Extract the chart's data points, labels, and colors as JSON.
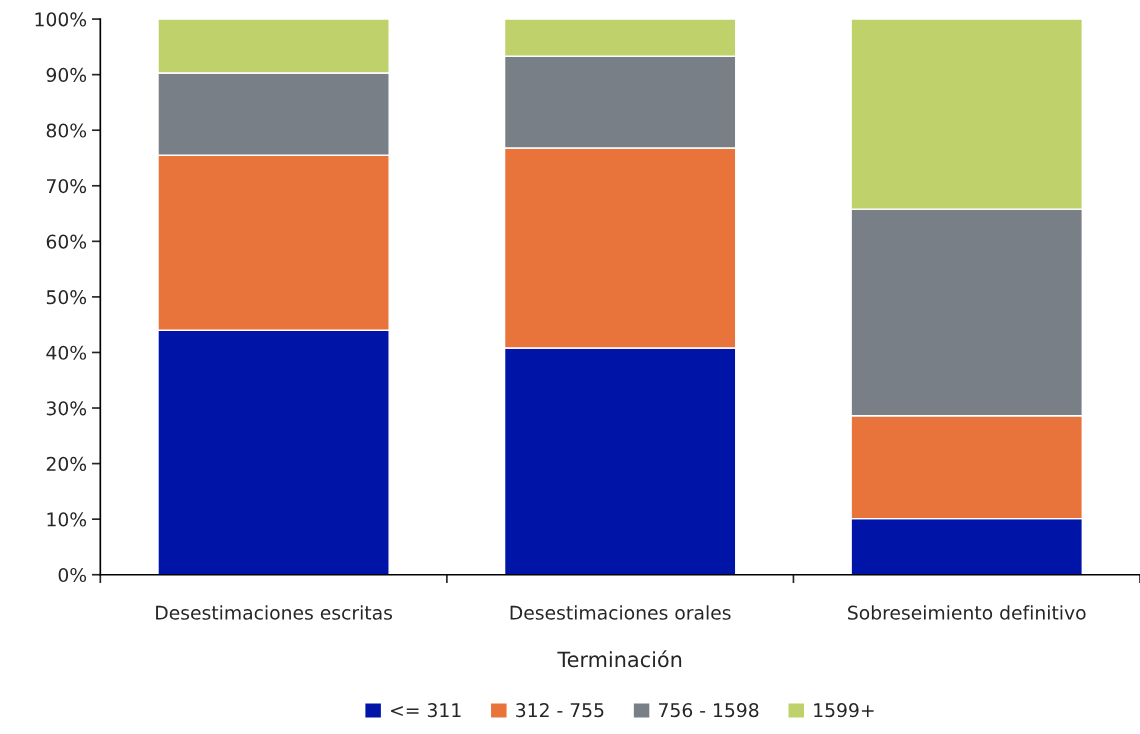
{
  "chart_data": {
    "type": "bar",
    "stacked": true,
    "xlabel": "Terminación",
    "categories": [
      "Desestimaciones escritas",
      "Desestimaciones orales",
      "Sobreseimiento definitivo"
    ],
    "series": [
      {
        "name": "<= 311",
        "color": "#0014a8",
        "values": [
          44,
          40.8,
          10.1
        ]
      },
      {
        "name": "312 - 755",
        "color": "#e8743b",
        "values": [
          31.5,
          36,
          18.5
        ]
      },
      {
        "name": "756 - 1598",
        "color": "#787f87",
        "values": [
          14.8,
          16.5,
          37.2
        ]
      },
      {
        "name": "1599+",
        "color": "#bfd16b",
        "values": [
          9.7,
          6.7,
          34.2
        ]
      }
    ],
    "ylim": [
      0,
      100
    ],
    "yticks": [
      {
        "value": 0,
        "label": "0%"
      },
      {
        "value": 10,
        "label": "10%"
      },
      {
        "value": 20,
        "label": "20%"
      },
      {
        "value": 30,
        "label": "30%"
      },
      {
        "value": 40,
        "label": "40%"
      },
      {
        "value": 50,
        "label": "50%"
      },
      {
        "value": 60,
        "label": "60%"
      },
      {
        "value": 70,
        "label": "70%"
      },
      {
        "value": 80,
        "label": "80%"
      },
      {
        "value": 90,
        "label": "90%"
      },
      {
        "value": 100,
        "label": "100%"
      }
    ],
    "grid": false,
    "legend": "bottom"
  }
}
